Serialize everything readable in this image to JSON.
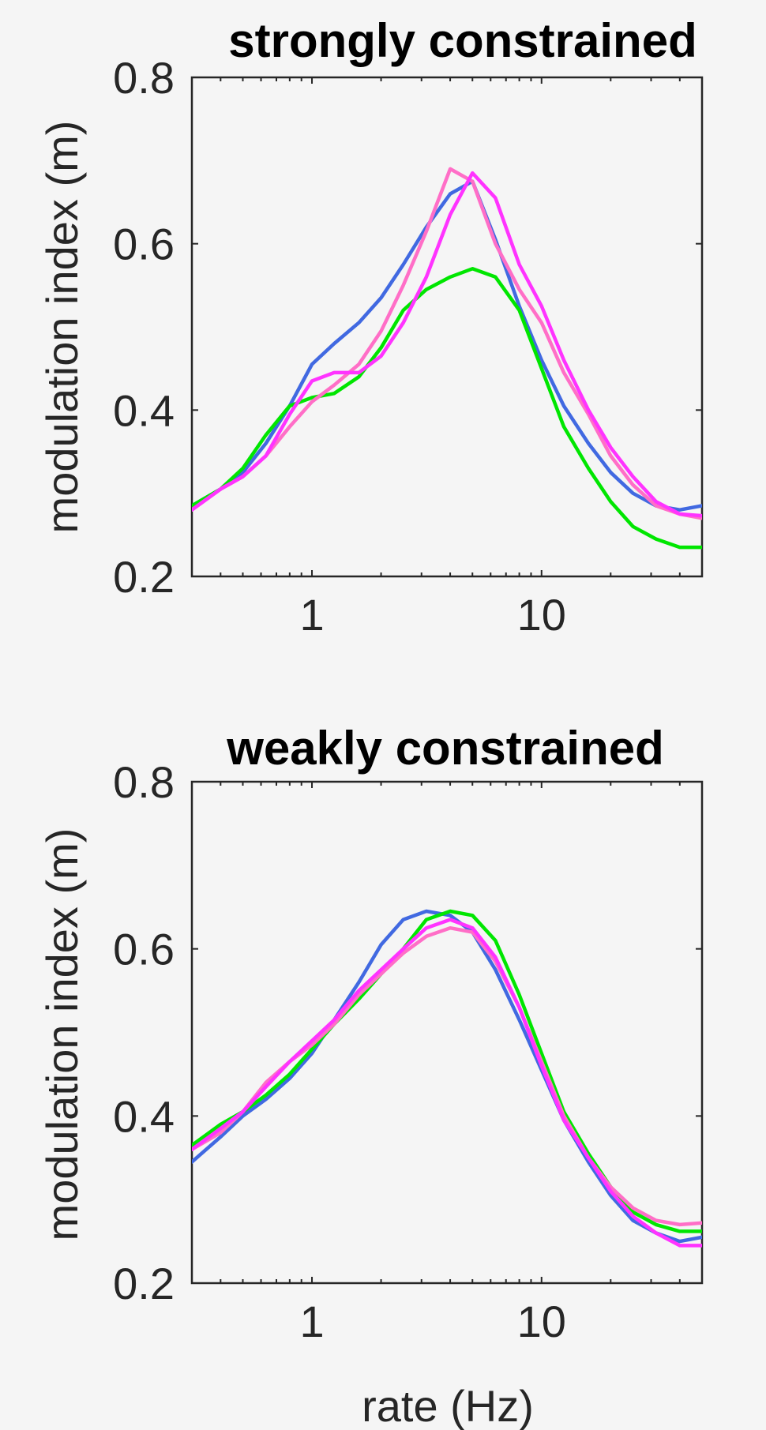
{
  "chart_data": [
    {
      "type": "line",
      "title": "strongly constrained",
      "xlabel": "",
      "ylabel": "modulation index (m)",
      "xscale": "log",
      "xlim": [
        0.3,
        50
      ],
      "ylim": [
        0.2,
        0.8
      ],
      "xticks": [
        1,
        10
      ],
      "xtick_labels": [
        "1",
        "10"
      ],
      "yticks": [
        0.2,
        0.4,
        0.6,
        0.8
      ],
      "ytick_labels": [
        "0.2",
        "0.4",
        "0.6",
        "0.8"
      ],
      "grid": false,
      "series": [
        {
          "color": "#4169e1",
          "x": [
            0.3,
            0.4,
            0.5,
            0.63,
            0.8,
            1.0,
            1.25,
            1.6,
            2.0,
            2.5,
            3.15,
            4.0,
            5.0,
            6.3,
            8.0,
            10,
            12.5,
            16,
            20,
            25,
            31.5,
            40,
            50
          ],
          "y": [
            0.285,
            0.305,
            0.325,
            0.36,
            0.405,
            0.455,
            0.48,
            0.505,
            0.535,
            0.575,
            0.62,
            0.66,
            0.675,
            0.605,
            0.525,
            0.46,
            0.405,
            0.36,
            0.325,
            0.3,
            0.285,
            0.28,
            0.285
          ]
        },
        {
          "color": "#00e600",
          "x": [
            0.3,
            0.4,
            0.5,
            0.63,
            0.8,
            1.0,
            1.25,
            1.6,
            2.0,
            2.5,
            3.15,
            4.0,
            5.0,
            6.3,
            8.0,
            10,
            12.5,
            16,
            20,
            25,
            31.5,
            40,
            50
          ],
          "y": [
            0.285,
            0.305,
            0.33,
            0.37,
            0.405,
            0.415,
            0.42,
            0.44,
            0.475,
            0.52,
            0.545,
            0.56,
            0.57,
            0.56,
            0.52,
            0.45,
            0.38,
            0.33,
            0.29,
            0.26,
            0.245,
            0.235,
            0.235
          ]
        },
        {
          "color": "#ff6ec7",
          "x": [
            0.3,
            0.4,
            0.5,
            0.63,
            0.8,
            1.0,
            1.25,
            1.6,
            2.0,
            2.5,
            3.15,
            4.0,
            5.0,
            6.3,
            8.0,
            10,
            12.5,
            16,
            20,
            25,
            31.5,
            40,
            50
          ],
          "y": [
            0.28,
            0.305,
            0.32,
            0.345,
            0.38,
            0.41,
            0.43,
            0.455,
            0.495,
            0.55,
            0.615,
            0.69,
            0.675,
            0.6,
            0.545,
            0.505,
            0.445,
            0.395,
            0.345,
            0.31,
            0.285,
            0.275,
            0.27
          ]
        },
        {
          "color": "#ff33ff",
          "x": [
            0.3,
            0.4,
            0.5,
            0.63,
            0.8,
            1.0,
            1.25,
            1.6,
            2.0,
            2.5,
            3.15,
            4.0,
            5.0,
            6.3,
            8.0,
            10,
            12.5,
            16,
            20,
            25,
            31.5,
            40,
            50
          ],
          "y": [
            0.28,
            0.305,
            0.32,
            0.345,
            0.395,
            0.435,
            0.445,
            0.445,
            0.465,
            0.505,
            0.56,
            0.635,
            0.685,
            0.655,
            0.575,
            0.525,
            0.46,
            0.4,
            0.355,
            0.32,
            0.29,
            0.275,
            0.273
          ]
        }
      ]
    },
    {
      "type": "line",
      "title": "weakly constrained",
      "xlabel": "rate (Hz)",
      "ylabel": "modulation index (m)",
      "xscale": "log",
      "xlim": [
        0.3,
        50
      ],
      "ylim": [
        0.2,
        0.8
      ],
      "xticks": [
        1,
        10
      ],
      "xtick_labels": [
        "1",
        "10"
      ],
      "yticks": [
        0.2,
        0.4,
        0.6,
        0.8
      ],
      "ytick_labels": [
        "0.2",
        "0.4",
        "0.6",
        "0.8"
      ],
      "grid": false,
      "series": [
        {
          "color": "#4169e1",
          "x": [
            0.3,
            0.4,
            0.5,
            0.63,
            0.8,
            1.0,
            1.25,
            1.6,
            2.0,
            2.5,
            3.15,
            4.0,
            5.0,
            6.3,
            8.0,
            10,
            12.5,
            16,
            20,
            25,
            31.5,
            40,
            50
          ],
          "y": [
            0.345,
            0.375,
            0.4,
            0.42,
            0.445,
            0.475,
            0.515,
            0.56,
            0.605,
            0.635,
            0.645,
            0.64,
            0.62,
            0.575,
            0.515,
            0.455,
            0.395,
            0.345,
            0.305,
            0.275,
            0.26,
            0.25,
            0.255
          ]
        },
        {
          "color": "#00e600",
          "x": [
            0.3,
            0.4,
            0.5,
            0.63,
            0.8,
            1.0,
            1.25,
            1.6,
            2.0,
            2.5,
            3.15,
            4.0,
            5.0,
            6.3,
            8.0,
            10,
            12.5,
            16,
            20,
            25,
            31.5,
            40,
            50
          ],
          "y": [
            0.365,
            0.39,
            0.405,
            0.425,
            0.45,
            0.48,
            0.51,
            0.54,
            0.57,
            0.6,
            0.635,
            0.645,
            0.64,
            0.61,
            0.545,
            0.475,
            0.405,
            0.355,
            0.315,
            0.285,
            0.27,
            0.262,
            0.262
          ]
        },
        {
          "color": "#ff6ec7",
          "x": [
            0.3,
            0.4,
            0.5,
            0.63,
            0.8,
            1.0,
            1.25,
            1.6,
            2.0,
            2.5,
            3.15,
            4.0,
            5.0,
            6.3,
            8.0,
            10,
            12.5,
            16,
            20,
            25,
            31.5,
            40,
            50
          ],
          "y": [
            0.36,
            0.38,
            0.405,
            0.44,
            0.465,
            0.485,
            0.51,
            0.545,
            0.57,
            0.595,
            0.615,
            0.625,
            0.62,
            0.585,
            0.53,
            0.465,
            0.4,
            0.35,
            0.315,
            0.29,
            0.275,
            0.27,
            0.272
          ]
        },
        {
          "color": "#ff33ff",
          "x": [
            0.3,
            0.4,
            0.5,
            0.63,
            0.8,
            1.0,
            1.25,
            1.6,
            2.0,
            2.5,
            3.15,
            4.0,
            5.0,
            6.3,
            8.0,
            10,
            12.5,
            16,
            20,
            25,
            31.5,
            40,
            50
          ],
          "y": [
            0.36,
            0.385,
            0.405,
            0.435,
            0.465,
            0.49,
            0.515,
            0.55,
            0.575,
            0.6,
            0.625,
            0.635,
            0.625,
            0.59,
            0.53,
            0.46,
            0.395,
            0.35,
            0.31,
            0.28,
            0.26,
            0.245,
            0.245
          ]
        }
      ]
    }
  ]
}
